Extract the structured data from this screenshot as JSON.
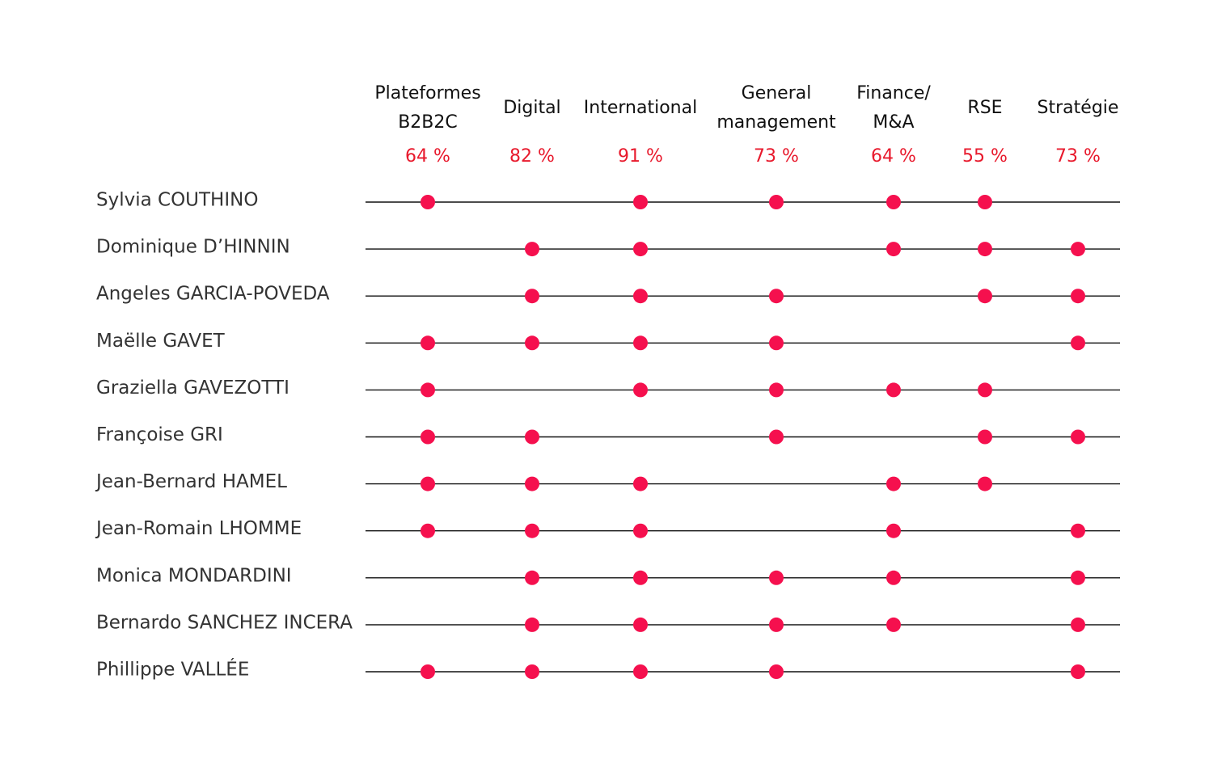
{
  "colors": {
    "dot": "#f5104e",
    "percent": "#e8192c",
    "line": "#111111",
    "header_text": "#111111",
    "name_text": "#333333"
  },
  "chart_data": {
    "type": "table",
    "title": "",
    "columns": [
      {
        "label_lines": [
          "Plateformes",
          "B2B2C"
        ],
        "percent": "64 %"
      },
      {
        "label_lines": [
          "Digital"
        ],
        "percent": "82 %"
      },
      {
        "label_lines": [
          "International"
        ],
        "percent": "91 %"
      },
      {
        "label_lines": [
          "General",
          "management"
        ],
        "percent": "73 %"
      },
      {
        "label_lines": [
          "Finance/",
          "M&A"
        ],
        "percent": "64 %"
      },
      {
        "label_lines": [
          "RSE"
        ],
        "percent": "55 %"
      },
      {
        "label_lines": [
          "Stratégie"
        ],
        "percent": "73 %"
      }
    ],
    "rows": [
      {
        "name": "Sylvia COUTHINO",
        "marks": [
          1,
          0,
          1,
          1,
          1,
          1,
          0
        ]
      },
      {
        "name": "Dominique D’HINNIN",
        "marks": [
          0,
          1,
          1,
          0,
          1,
          1,
          1
        ]
      },
      {
        "name": "Angeles GARCIA-POVEDA",
        "marks": [
          0,
          1,
          1,
          1,
          0,
          1,
          1
        ]
      },
      {
        "name": "Maëlle GAVET",
        "marks": [
          1,
          1,
          1,
          1,
          0,
          0,
          1
        ]
      },
      {
        "name": "Graziella GAVEZOTTI",
        "marks": [
          1,
          0,
          1,
          1,
          1,
          1,
          0
        ]
      },
      {
        "name": "Françoise GRI",
        "marks": [
          1,
          1,
          0,
          1,
          0,
          1,
          1
        ]
      },
      {
        "name": "Jean-Bernard HAMEL",
        "marks": [
          1,
          1,
          1,
          0,
          1,
          1,
          0
        ]
      },
      {
        "name": "Jean-Romain LHOMME",
        "marks": [
          1,
          1,
          1,
          0,
          1,
          0,
          1
        ]
      },
      {
        "name": "Monica MONDARDINI",
        "marks": [
          0,
          1,
          1,
          1,
          1,
          0,
          1
        ]
      },
      {
        "name": "Bernardo SANCHEZ INCERA",
        "marks": [
          0,
          1,
          1,
          1,
          1,
          0,
          1
        ]
      },
      {
        "name": "Phillippe VALLÉE",
        "marks": [
          1,
          1,
          1,
          1,
          0,
          0,
          1
        ]
      }
    ]
  }
}
